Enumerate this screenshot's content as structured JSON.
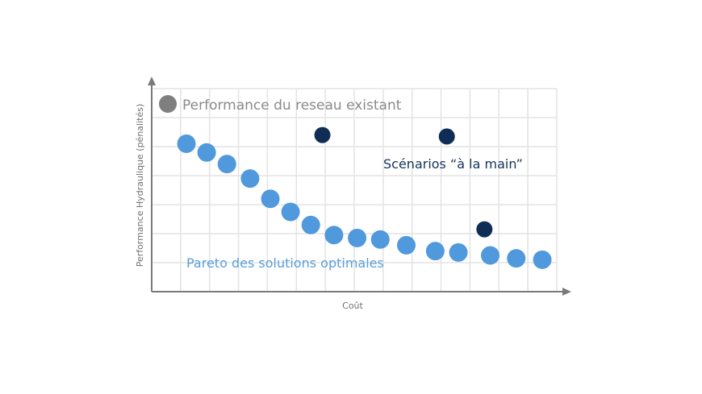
{
  "chart_data": {
    "type": "scatter",
    "title": "",
    "xlabel": "Coût",
    "ylabel": "Performance Hydraulique (pénalités)",
    "xlim": [
      0,
      14
    ],
    "ylim": [
      0,
      7
    ],
    "grid": true,
    "colors": {
      "existing": "#7f7f7f",
      "scenarios": "#0f2d55",
      "pareto": "#5099dc"
    },
    "series": [
      {
        "name": "Performance du reseau existant",
        "color": "#7f7f7f",
        "points": []
      },
      {
        "name": "Scénarios “à la main”",
        "color": "#0f2d55",
        "points": [
          {
            "x": 5.9,
            "y": 5.4
          },
          {
            "x": 10.2,
            "y": 5.35
          },
          {
            "x": 11.5,
            "y": 2.15
          }
        ]
      },
      {
        "name": "Pareto des solutions optimales",
        "color": "#5099dc",
        "points": [
          {
            "x": 1.2,
            "y": 5.1
          },
          {
            "x": 1.9,
            "y": 4.8
          },
          {
            "x": 2.6,
            "y": 4.4
          },
          {
            "x": 3.4,
            "y": 3.9
          },
          {
            "x": 4.1,
            "y": 3.2
          },
          {
            "x": 4.8,
            "y": 2.75
          },
          {
            "x": 5.5,
            "y": 2.3
          },
          {
            "x": 6.3,
            "y": 1.95
          },
          {
            "x": 7.1,
            "y": 1.85
          },
          {
            "x": 7.9,
            "y": 1.8
          },
          {
            "x": 8.8,
            "y": 1.6
          },
          {
            "x": 9.8,
            "y": 1.4
          },
          {
            "x": 10.6,
            "y": 1.35
          },
          {
            "x": 11.7,
            "y": 1.25
          },
          {
            "x": 12.6,
            "y": 1.15
          },
          {
            "x": 13.5,
            "y": 1.1
          }
        ]
      }
    ]
  }
}
